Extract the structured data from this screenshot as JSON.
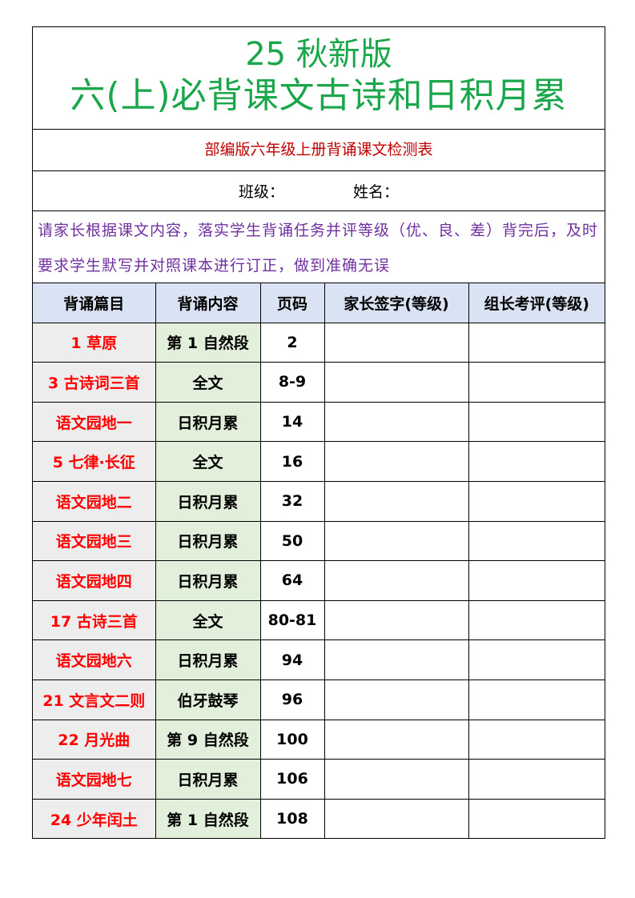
{
  "title": {
    "line1": "25 秋新版",
    "line2": "六(上)必背课文古诗和日积月累"
  },
  "subtitle": "部编版六年级上册背诵课文检测表",
  "info": {
    "class_label": "班级：",
    "name_label": "姓名："
  },
  "note": "请家长根据课文内容，落实学生背诵任务并评等级（优、良、差）背完后，及时要求学生默写并对照课本进行订正，做到准确无误",
  "table": {
    "headers": [
      "背诵篇目",
      "背诵内容",
      "页码",
      "家长签字(等级)",
      "组长考评(等级)"
    ],
    "rows": [
      [
        "1 草原",
        "第 1 自然段",
        "2"
      ],
      [
        "3 古诗词三首",
        "全文",
        "8-9"
      ],
      [
        "语文园地一",
        "日积月累",
        "14"
      ],
      [
        "5 七律·长征",
        "全文",
        "16"
      ],
      [
        "语文园地二",
        "日积月累",
        "32"
      ],
      [
        "语文园地三",
        "日积月累",
        "50"
      ],
      [
        "语文园地四",
        "日积月累",
        "64"
      ],
      [
        "17 古诗三首",
        "全文",
        "80-81"
      ],
      [
        "语文园地六",
        "日积月累",
        "94"
      ],
      [
        "21 文言文二则",
        "伯牙鼓琴",
        "96"
      ],
      [
        "22 月光曲",
        "第 9 自然段",
        "100"
      ],
      [
        "语文园地七",
        "日积月累",
        "106"
      ],
      [
        "24 少年闰土",
        "第 1 自然段",
        "108"
      ]
    ]
  }
}
